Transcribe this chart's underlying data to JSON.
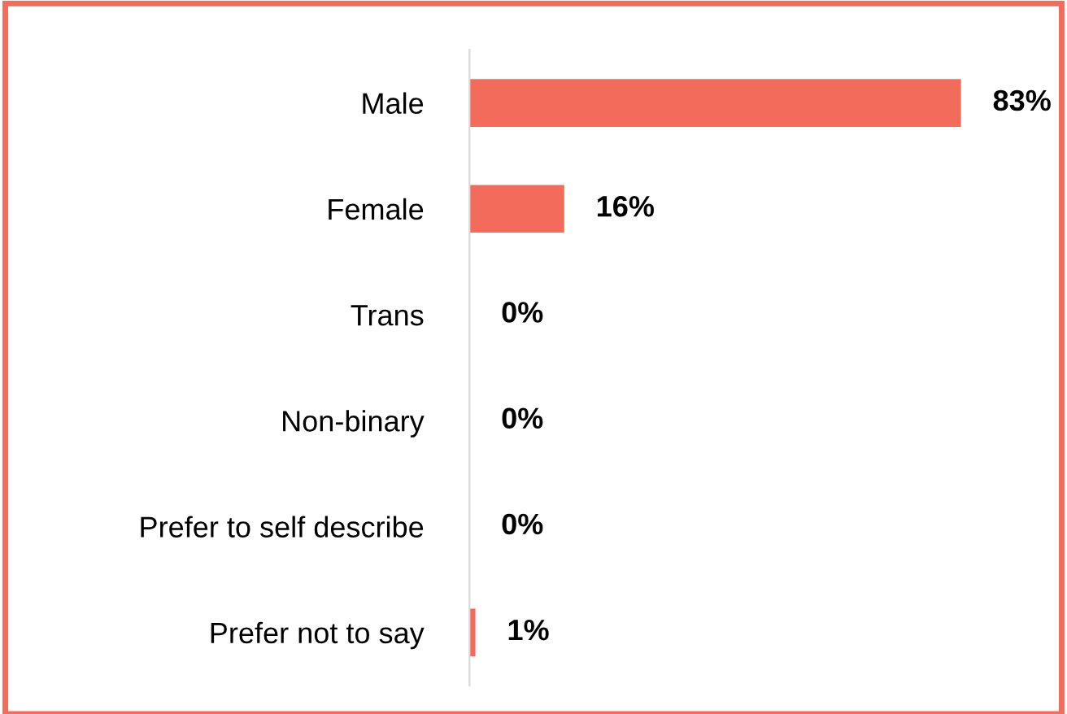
{
  "chart_data": {
    "type": "bar",
    "orientation": "horizontal",
    "categories": [
      "Male",
      "Female",
      "Trans",
      "Non-binary",
      "Prefer to self describe",
      "Prefer not to say"
    ],
    "values": [
      83,
      16,
      0,
      0,
      0,
      1
    ],
    "value_labels": [
      "83%",
      "16%",
      "0%",
      "0%",
      "0%",
      "1%"
    ],
    "color": "#f26b5b",
    "xlim": [
      0,
      100
    ],
    "tick_labels": "y",
    "grid": false,
    "legend": false
  }
}
